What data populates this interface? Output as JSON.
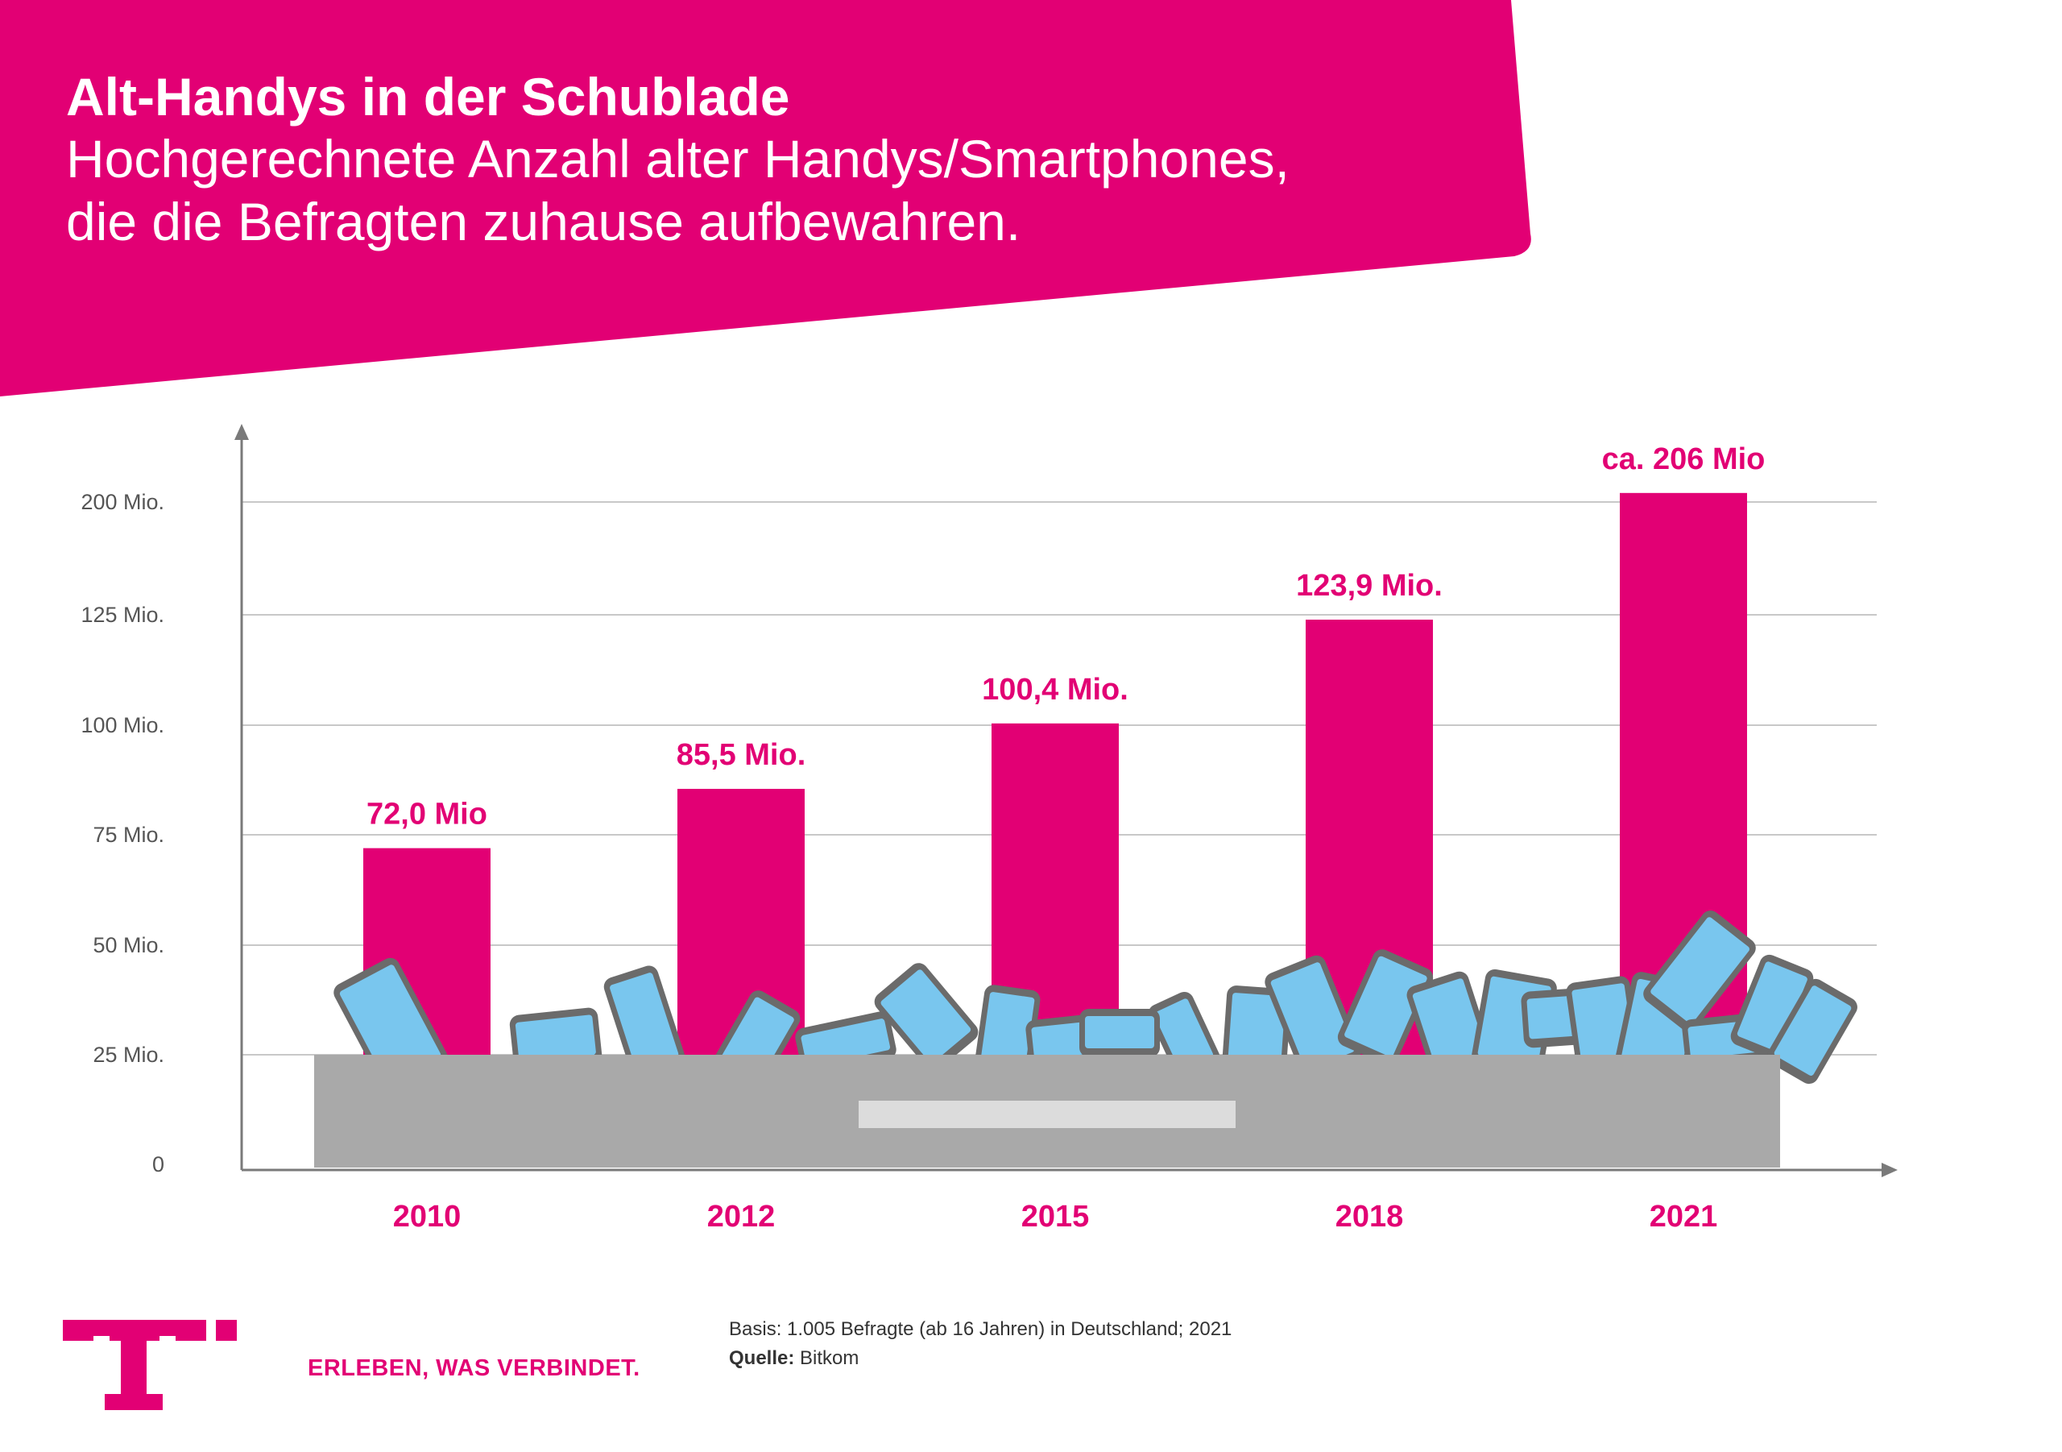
{
  "colors": {
    "brand": "#e20074",
    "drawer": "#a9a9a9",
    "drawer_slot": "#dcdcdc",
    "grid": "#c8c8c8",
    "axis": "#7a7a7a",
    "tick_text": "#555555",
    "phone_screen": "#79c6ee",
    "phone_body": "#6b6b6b"
  },
  "header": {
    "title": "Alt-Handys in der Schublade",
    "subtitle_line1": "Hochgerechnete Anzahl alter Handys/Smartphones,",
    "subtitle_line2": "die die Befragten zuhause aufbewahren."
  },
  "chart_data": {
    "type": "bar",
    "title": "Alt-Handys in der Schublade",
    "categories": [
      "2010",
      "2012",
      "2015",
      "2018",
      "2021"
    ],
    "values": [
      72.0,
      85.5,
      100.4,
      123.9,
      206
    ],
    "value_labels": [
      "72,0 Mio",
      "85,5 Mio.",
      "100,4 Mio.",
      "123,9 Mio.",
      "ca. 206 Mio"
    ],
    "y_axis": {
      "ticks": [
        {
          "value": 0,
          "label": "0"
        },
        {
          "value": 25,
          "label": "25 Mio."
        },
        {
          "value": 50,
          "label": "50 Mio."
        },
        {
          "value": 75,
          "label": "75 Mio."
        },
        {
          "value": 100,
          "label": "100 Mio."
        },
        {
          "value": 125,
          "label": "125 Mio."
        },
        {
          "value": 200,
          "label": "200 Mio."
        }
      ],
      "note": "axis is not linear: 125 Mio. and 200 Mio. gridlines are spaced like 25 Mio. steps"
    },
    "grid": true,
    "legend": "none"
  },
  "footer": {
    "basis": "Basis: 1.005 Befragte (ab 16 Jahren) in Deutschland; 2021",
    "source_label": "Quelle:",
    "source_value": "Bitkom",
    "slogan": "ERLEBEN, WAS VERBINDET.",
    "logo_icon": "telekom-t-logo"
  }
}
